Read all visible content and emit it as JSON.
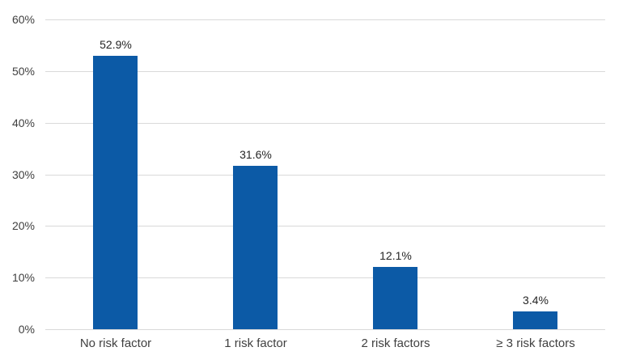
{
  "chart_data": {
    "type": "bar",
    "title": "",
    "xlabel": "",
    "ylabel": "",
    "categories": [
      "No risk factor",
      "1 risk factor",
      "2 risk factors",
      "≥ 3 risk factors"
    ],
    "values": [
      52.9,
      31.6,
      12.1,
      3.4
    ],
    "data_labels": [
      "52.9%",
      "31.6%",
      "12.1%",
      "3.4%"
    ],
    "ylim": [
      0,
      60
    ],
    "ytick_step": 10,
    "ytick_labels": [
      "0%",
      "10%",
      "20%",
      "30%",
      "40%",
      "50%",
      "60%"
    ],
    "grid": true,
    "legend": "none",
    "colors": {
      "bar": "#0C5AA6",
      "gridline": "#D9D9D9",
      "axis_label": "#404040",
      "value_label": "#262626",
      "background": "#FFFFFF"
    }
  }
}
